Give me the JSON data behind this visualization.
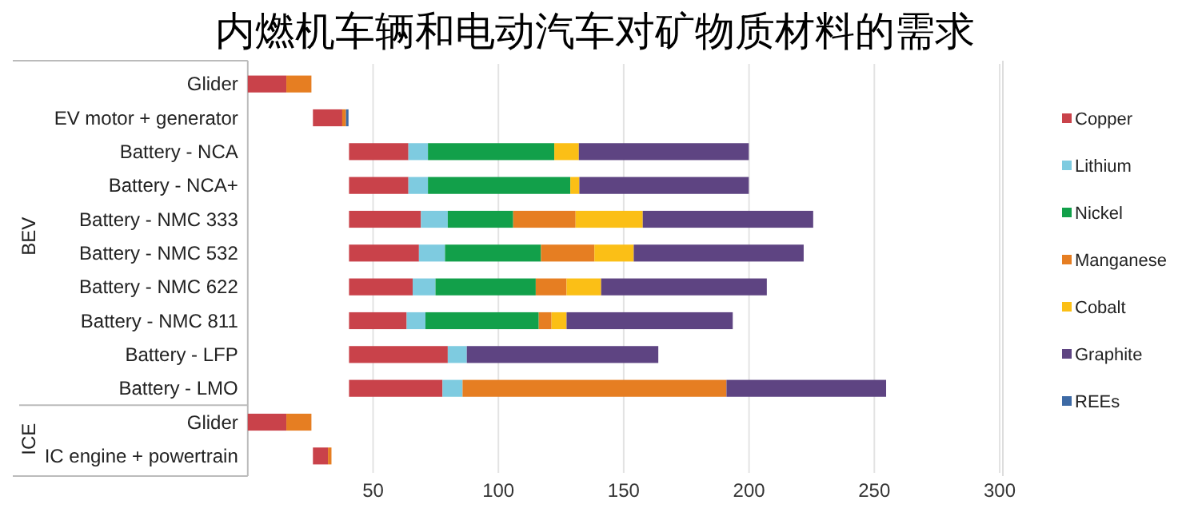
{
  "chart_data": {
    "type": "bar",
    "title": "内燃机车辆和电动汽车对矿物质材料的需求",
    "orientation": "horizontal",
    "categories": [
      "Glider",
      "EV motor + generator",
      "Battery - NCA",
      "Battery - NCA+",
      "Battery - NMC 333",
      "Battery - NMC 532",
      "Battery - NMC 622",
      "Battery - NMC 811",
      "Battery - LFP",
      "Battery - LMO",
      "Glider",
      "IC engine + powertrain"
    ],
    "series": [
      {
        "name": "Copper",
        "color": "#c9424a",
        "base": [
          0,
          26,
          40.4,
          40.4,
          40.4,
          40.4,
          40.4,
          40.4,
          40.4,
          40.4,
          0,
          26
        ],
        "values": [
          15.4,
          11.7,
          23.7,
          23.7,
          28.7,
          27.9,
          25.4,
          23.0,
          39.4,
          37.3,
          15.4,
          6.0
        ]
      },
      {
        "name": "Lithium",
        "color": "#7ecbe0",
        "base": [
          null,
          null,
          64.1,
          64.1,
          69.1,
          68.3,
          65.8,
          63.4,
          79.8,
          77.7,
          null,
          null
        ],
        "values": [
          null,
          null,
          7.8,
          7.8,
          10.7,
          10.4,
          9.1,
          7.5,
          7.6,
          8.0,
          null,
          null
        ]
      },
      {
        "name": "Nickel",
        "color": "#12a04a",
        "base": [
          null,
          null,
          71.9,
          71.9,
          79.8,
          78.7,
          74.9,
          70.9,
          null,
          null,
          null,
          null
        ],
        "values": [
          null,
          null,
          50.4,
          56.8,
          26.1,
          38.3,
          40.0,
          45.2,
          null,
          null,
          null,
          null
        ]
      },
      {
        "name": "Manganese",
        "color": "#e67e22",
        "base": [
          15.4,
          37.7,
          null,
          null,
          105.9,
          117.0,
          114.9,
          116.1,
          null,
          85.7,
          15.4,
          32.0
        ],
        "values": [
          10.0,
          1.5,
          null,
          null,
          24.9,
          21.3,
          12.3,
          5.1,
          null,
          105.3,
          10.0,
          1.4
        ]
      },
      {
        "name": "Cobalt",
        "color": "#fbbf16",
        "base": [
          null,
          null,
          122.3,
          128.7,
          130.8,
          138.3,
          127.2,
          121.2,
          null,
          null,
          null,
          null
        ],
        "values": [
          null,
          null,
          9.8,
          3.6,
          26.8,
          15.7,
          13.8,
          6.0,
          null,
          null,
          null,
          null
        ]
      },
      {
        "name": "Graphite",
        "color": "#5e4482",
        "base": [
          null,
          null,
          132.1,
          132.3,
          157.6,
          154.0,
          141.0,
          127.2,
          87.4,
          191.0,
          null,
          null
        ],
        "values": [
          null,
          null,
          67.8,
          67.6,
          68.0,
          67.8,
          66.1,
          66.3,
          76.4,
          63.7,
          null,
          null
        ]
      },
      {
        "name": "REEs",
        "color": "#3d6aa5",
        "base": [
          null,
          39.2,
          null,
          null,
          null,
          null,
          null,
          null,
          null,
          null,
          null,
          null
        ],
        "values": [
          null,
          1.0,
          null,
          null,
          null,
          null,
          null,
          null,
          null,
          null,
          null,
          null
        ]
      }
    ],
    "xlim": [
      0,
      300
    ],
    "xticks": [
      50,
      100,
      150,
      200,
      250,
      300
    ],
    "grid": "x",
    "legend": "right",
    "marker": "square",
    "annotations": [
      "BEV",
      "ICE"
    ]
  }
}
